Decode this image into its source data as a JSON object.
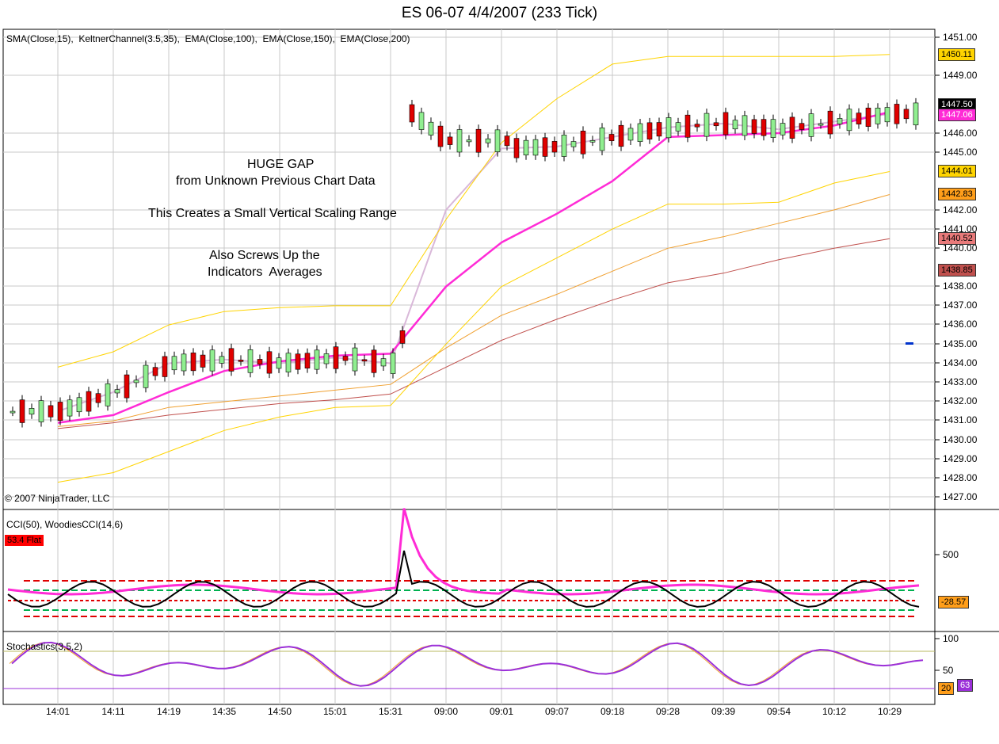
{
  "title": "ES 06-07  4/4/2007  (233 Tick)",
  "price_panel": {
    "indicators": "SMA(Close,15),  KeltnerChannel(3.5,35),  EMA(Close,100),  EMA(Close,150),  EMA(Close,200)",
    "copyright": "© 2007 NinjaTrader, LLC",
    "annotations": {
      "line1": "HUGE GAP",
      "line2": "from Unknown Previous Chart Data",
      "line3": "This Creates a Small Vertical Scaling Range",
      "line4": "Also Screws Up the",
      "line5": "Indicators  Averages"
    },
    "y_ticks": [
      "1451.00",
      "1449.00",
      "1446.00",
      "1445.00",
      "1442.00",
      "1441.00",
      "1440.00",
      "1438.00",
      "1437.00",
      "1436.00",
      "1435.00",
      "1434.00",
      "1433.00",
      "1432.00",
      "1431.00",
      "1430.00",
      "1429.00",
      "1428.00",
      "1427.00"
    ],
    "price_badges": [
      {
        "value": "1450.11",
        "bg": "#ffd400",
        "fg": "#000000"
      },
      {
        "value": "1447.50",
        "bg": "#000000",
        "fg": "#ffffff"
      },
      {
        "value": "1447.06",
        "bg": "#ff2bd6",
        "fg": "#ffffff"
      },
      {
        "value": "1444.01",
        "bg": "#ffd400",
        "fg": "#000000"
      },
      {
        "value": "1442.83",
        "bg": "#ff9e1a",
        "fg": "#000000"
      },
      {
        "value": "1440.52",
        "bg": "#e87a7a",
        "fg": "#000000"
      },
      {
        "value": "1438.85",
        "bg": "#c0504d",
        "fg": "#000000"
      }
    ]
  },
  "cci_panel": {
    "label": "CCI(50), WoodiesCCI(14,6)",
    "status": "53.4 Flat",
    "status_color": "#ff0000",
    "y_tick": "500",
    "badges": [
      {
        "value": "-28.57",
        "bg": "#ff9e1a",
        "fg": "#000000"
      }
    ]
  },
  "stoch_panel": {
    "label": "Stochastics(3,5,2)",
    "y_ticks": [
      "100",
      "50"
    ],
    "badges": [
      {
        "value": "20",
        "bg": "#ff9e1a",
        "fg": "#000000"
      },
      {
        "value": "63",
        "bg": "#9b30d9",
        "fg": "#ffffff"
      }
    ]
  },
  "x_ticks": [
    "14:01",
    "14:11",
    "14:19",
    "14:35",
    "14:50",
    "15:01",
    "15:31",
    "09:00",
    "09:01",
    "09:07",
    "09:18",
    "09:28",
    "09:39",
    "09:54",
    "10:12",
    "10:29"
  ],
  "chart_data": {
    "type": "line",
    "title": "ES 06-07  4/4/2007  (233 Tick)",
    "ylim": [
      1427,
      1451
    ],
    "categories": [
      "14:01",
      "14:11",
      "14:19",
      "14:35",
      "14:50",
      "15:01",
      "15:31",
      "09:00",
      "09:01",
      "09:07",
      "09:18",
      "09:28",
      "09:39",
      "09:54",
      "10:12",
      "10:29"
    ],
    "series": [
      {
        "name": "SMA(Close,15)",
        "values": [
          1431.5,
          1432.5,
          1434.0,
          1434.2,
          1434.0,
          1434.3,
          1434.0,
          1442.0,
          1445.2,
          1445.3,
          1445.8,
          1446.3,
          1446.5,
          1446.2,
          1446.6,
          1447.0
        ]
      },
      {
        "name": "EMA(Close,100)",
        "values": [
          1430.9,
          1431.3,
          1432.5,
          1433.6,
          1434.1,
          1434.4,
          1434.5,
          1438.0,
          1440.3,
          1441.8,
          1443.5,
          1445.8,
          1445.9,
          1446.0,
          1446.4,
          1447.1
        ]
      },
      {
        "name": "EMA(Close,150)",
        "values": [
          1430.7,
          1431.0,
          1431.7,
          1432.0,
          1432.3,
          1432.6,
          1432.9,
          1434.8,
          1436.5,
          1437.6,
          1438.8,
          1440.0,
          1440.6,
          1441.3,
          1442.0,
          1442.8
        ]
      },
      {
        "name": "EMA(Close,200)",
        "values": [
          1430.6,
          1430.9,
          1431.3,
          1431.6,
          1431.9,
          1432.1,
          1432.4,
          1433.8,
          1435.2,
          1436.3,
          1437.3,
          1438.2,
          1438.7,
          1439.4,
          1440.0,
          1440.5
        ]
      },
      {
        "name": "KeltnerChannel Upper",
        "values": [
          1433.8,
          1434.6,
          1436.0,
          1436.7,
          1436.9,
          1437.0,
          1437.0,
          1441.5,
          1445.5,
          1447.8,
          1449.6,
          1450.0,
          1450.0,
          1450.0,
          1450.0,
          1450.1
        ]
      },
      {
        "name": "KeltnerChannel Lower",
        "values": [
          1427.8,
          1428.3,
          1429.4,
          1430.5,
          1431.2,
          1431.7,
          1431.8,
          1435.0,
          1438.0,
          1439.5,
          1441.0,
          1442.3,
          1442.3,
          1442.4,
          1443.4,
          1444.0
        ]
      }
    ]
  }
}
